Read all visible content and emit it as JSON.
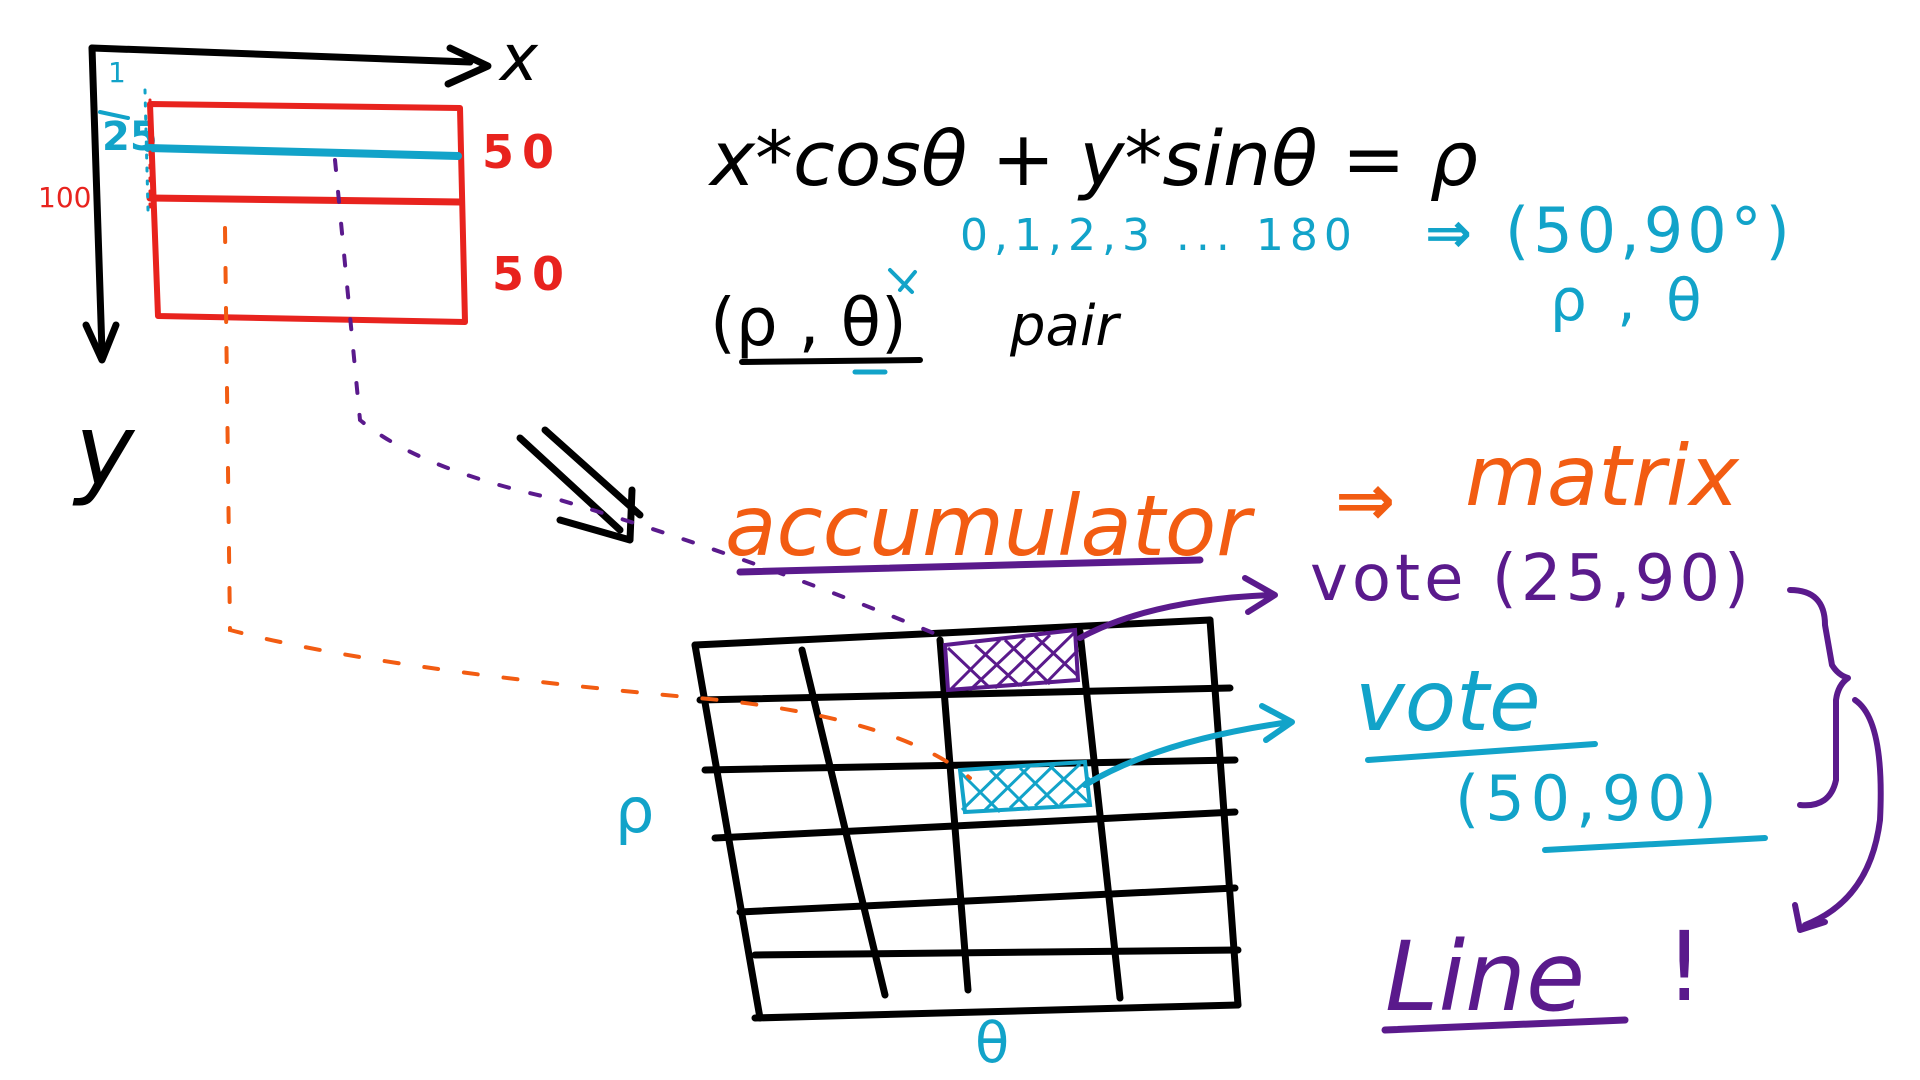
{
  "colors": {
    "black": "#000000",
    "red": "#e8231e",
    "blue": "#12a3c9",
    "orange": "#f25c12",
    "purple": "#5a1a8c"
  },
  "axes": {
    "x_label": "x",
    "y_label": "y",
    "tick_zero": "1",
    "tick_25": "25",
    "tick_100": "100"
  },
  "image_box": {
    "right_label_top": "50",
    "right_label_bottom": "50"
  },
  "equation": {
    "main": "x*cosθ + y*sinθ = ρ",
    "theta_range": "0,1,2,3 ... 180",
    "arrow": "⇒",
    "result_pair": "(50,90°)",
    "result_sub": "ρ , θ"
  },
  "pair": {
    "text": "(ρ , θ)",
    "word": "pair"
  },
  "accumulator": {
    "word": "accumulator",
    "arrow": "⇒",
    "matrix": "matrix",
    "rho_axis": "ρ",
    "theta_axis": "θ"
  },
  "votes": {
    "vote1": "vote (25,90)",
    "vote2": "vote",
    "vote2_pair": "(50,90)"
  },
  "conclusion": {
    "line": "Line",
    "bang": "!"
  }
}
